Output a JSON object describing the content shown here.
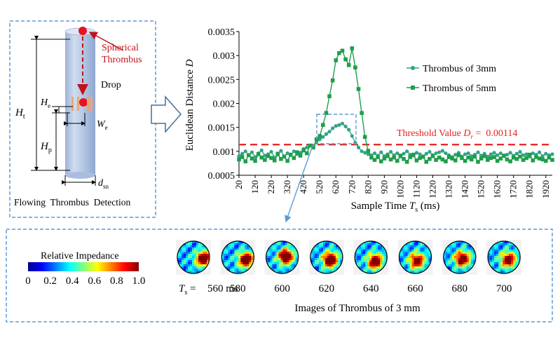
{
  "detection_panel": {
    "spherical_label_1": "Spherical",
    "spherical_label_2": "Thrombus",
    "drop_label": "Drop",
    "H": "H",
    "W": "W",
    "d": "d",
    "sub_t": "t",
    "sub_e": "e",
    "sub_p": "p",
    "sub_sn": "sn",
    "caption": "Flowing  Thrombus  Detection"
  },
  "chart_data": {
    "type": "line",
    "ylabel": "Euclidean Distance",
    "ylabel_var": "D",
    "xlabel": "Sample Time",
    "xlabel_var": "T",
    "xlabel_sub": "s",
    "xlabel_unit": "(ms)",
    "ylim": [
      0.0005,
      0.0035
    ],
    "y_ticks": [
      "0.0005",
      "0.001",
      "0.0015",
      "0.002",
      "0.0025",
      "0.003",
      "0.0035"
    ],
    "x_tick_labels": [
      "20",
      "120",
      "220",
      "320",
      "420",
      "520",
      "620",
      "720",
      "820",
      "920",
      "1020",
      "1120",
      "1220",
      "1320",
      "1420",
      "1520",
      "1620",
      "1720",
      "1820",
      "1920"
    ],
    "xlim": [
      20,
      1960
    ],
    "threshold": {
      "value": 0.00114,
      "label_prefix": "Threshold Value",
      "label_var": "D",
      "label_sub": "r",
      "label_suffix": " =  0.00114",
      "color": "#e8201f"
    },
    "series": [
      {
        "name": "Thrombus of 3mm",
        "marker": "circle",
        "color": "#31a387",
        "x": [
          20,
          40,
          60,
          80,
          100,
          120,
          140,
          160,
          180,
          200,
          220,
          240,
          260,
          280,
          300,
          320,
          340,
          360,
          380,
          400,
          420,
          440,
          460,
          480,
          500,
          520,
          540,
          560,
          580,
          600,
          620,
          640,
          660,
          680,
          700,
          720,
          740,
          760,
          780,
          800,
          820,
          840,
          860,
          880,
          900,
          920,
          940,
          960,
          980,
          1000,
          1020,
          1040,
          1060,
          1080,
          1100,
          1120,
          1140,
          1160,
          1180,
          1200,
          1220,
          1240,
          1260,
          1280,
          1300,
          1320,
          1340,
          1360,
          1380,
          1400,
          1420,
          1440,
          1460,
          1480,
          1500,
          1520,
          1540,
          1560,
          1580,
          1600,
          1620,
          1640,
          1660,
          1680,
          1700,
          1720,
          1740,
          1760,
          1780,
          1800,
          1820,
          1840,
          1860,
          1880,
          1900,
          1920,
          1940,
          1960
        ],
        "values": [
          0.0009,
          0.00095,
          0.001,
          0.00092,
          0.00098,
          0.00088,
          0.00096,
          0.00102,
          0.00091,
          0.00094,
          0.00099,
          0.00087,
          0.00093,
          0.00101,
          0.00089,
          0.00096,
          0.00092,
          0.001,
          0.00094,
          0.00097,
          0.00105,
          0.00108,
          0.00112,
          0.0011,
          0.00118,
          0.00125,
          0.0013,
          0.00136,
          0.00141,
          0.00148,
          0.00153,
          0.00155,
          0.00158,
          0.00152,
          0.00145,
          0.00132,
          0.00118,
          0.00108,
          0.001,
          0.00097,
          0.00094,
          0.00092,
          0.00096,
          0.00091,
          0.00098,
          0.0009,
          0.00094,
          0.00099,
          0.00092,
          0.00096,
          0.00089,
          0.00095,
          0.001,
          0.00093,
          0.00091,
          0.00097,
          0.00094,
          0.00088,
          0.00095,
          0.00099,
          0.00092,
          0.00096,
          0.00098,
          0.00101,
          0.00096,
          0.00092,
          0.00088,
          0.00093,
          0.00097,
          0.00089,
          0.00094,
          0.00096,
          0.0009,
          0.00093,
          0.00098,
          0.00091,
          0.00095,
          0.00089,
          0.00094,
          0.00097,
          0.00092,
          0.00096,
          0.0009,
          0.00093,
          0.00097,
          0.00091,
          0.00095,
          0.00099,
          0.00092,
          0.00094,
          0.00089,
          0.00096,
          0.00093,
          0.00098,
          0.0009,
          0.00095,
          0.00092,
          0.00094
        ]
      },
      {
        "name": "Thrombus of 5mm",
        "marker": "square",
        "color": "#1f9e4a",
        "x": [
          20,
          40,
          60,
          80,
          100,
          120,
          140,
          160,
          180,
          200,
          220,
          240,
          260,
          280,
          300,
          320,
          340,
          360,
          380,
          400,
          420,
          440,
          460,
          480,
          500,
          520,
          540,
          560,
          580,
          600,
          620,
          640,
          660,
          680,
          700,
          720,
          740,
          760,
          780,
          800,
          820,
          840,
          860,
          880,
          900,
          920,
          940,
          960,
          980,
          1000,
          1020,
          1040,
          1060,
          1080,
          1100,
          1120,
          1140,
          1160,
          1180,
          1200,
          1220,
          1240,
          1260,
          1280,
          1300,
          1320,
          1340,
          1360,
          1380,
          1400,
          1420,
          1440,
          1460,
          1480,
          1500,
          1520,
          1540,
          1560,
          1580,
          1600,
          1620,
          1640,
          1660,
          1680,
          1700,
          1720,
          1740,
          1760,
          1780,
          1800,
          1820,
          1840,
          1860,
          1880,
          1900,
          1920,
          1940,
          1960
        ],
        "values": [
          0.00083,
          0.00088,
          0.00079,
          0.00092,
          0.00085,
          0.0008,
          0.00094,
          0.00087,
          0.00082,
          0.0009,
          0.00086,
          0.00081,
          0.00095,
          0.00084,
          0.00089,
          0.0008,
          0.00093,
          0.00086,
          0.00098,
          0.00091,
          0.00102,
          0.00096,
          0.00112,
          0.00108,
          0.00125,
          0.00132,
          0.00155,
          0.0018,
          0.00215,
          0.00248,
          0.0029,
          0.00305,
          0.0031,
          0.00292,
          0.0028,
          0.00315,
          0.00275,
          0.0023,
          0.0018,
          0.0013,
          0.00101,
          0.00087,
          0.00082,
          0.00088,
          0.00079,
          0.00085,
          0.0009,
          0.00083,
          0.00087,
          0.0008,
          0.00091,
          0.00084,
          0.00078,
          0.00088,
          0.00093,
          0.00081,
          0.00086,
          0.00089,
          0.00078,
          0.00084,
          0.0009,
          0.00082,
          0.00087,
          0.00083,
          0.00079,
          0.00088,
          0.00085,
          0.00081,
          0.00092,
          0.00086,
          0.0008,
          0.00087,
          0.00083,
          0.00089,
          0.00078,
          0.00085,
          0.0009,
          0.00082,
          0.00086,
          0.00088,
          0.0008,
          0.00085,
          0.00091,
          0.00083,
          0.00079,
          0.00087,
          0.00084,
          0.00089,
          0.00082,
          0.00086,
          0.00093,
          0.00081,
          0.00088,
          0.00085,
          0.00083,
          0.0008,
          0.00087,
          0.00082
        ]
      }
    ],
    "legend": "top-right",
    "grid": false
  },
  "impedance_panel": {
    "colorbar_title": "Relative Impedance",
    "colorbar_ticks": [
      "0",
      "0.2",
      "0.4",
      "0.6",
      "0.8",
      "1.0"
    ],
    "time_var": "T",
    "time_sub": "s",
    "time_prefix": " = ",
    "time_unit": " ms",
    "frames": [
      "560",
      "580",
      "600",
      "620",
      "640",
      "660",
      "680",
      "700"
    ],
    "caption": "Images of Thrombus of 3 mm"
  }
}
